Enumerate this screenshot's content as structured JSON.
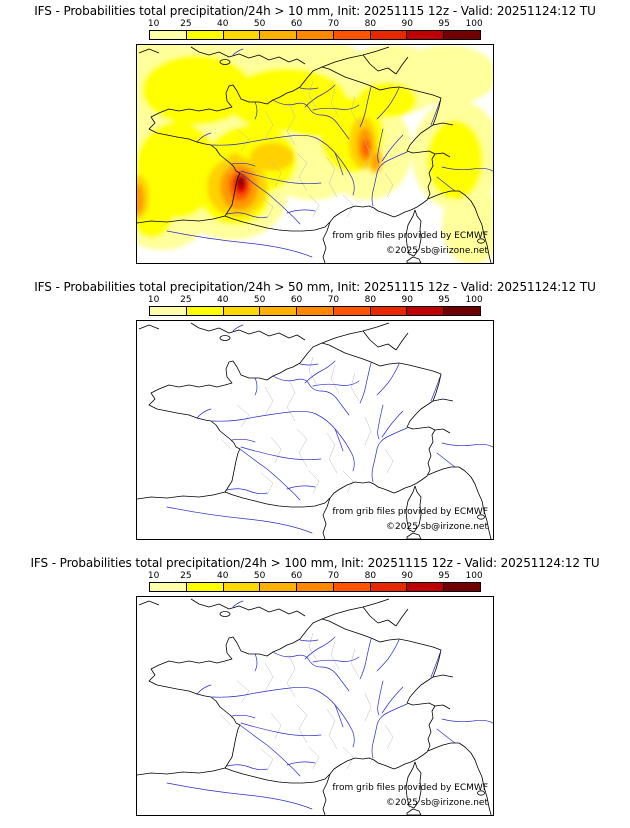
{
  "panels": [
    {
      "title": "IFS - Probabilities total precipitation/24h > 10 mm, Init: 20251115 12z - Valid: 20251124:12 TU",
      "threshold_mm": 10,
      "shading": true,
      "credit_line1": "from grib files provided by ECMWF",
      "credit_line2": "©2025 sb@irizone.net",
      "shaded_regions": [
        {
          "area": "English Channel, Brittany and northwest France",
          "probability_pct": "10-40"
        },
        {
          "area": "Atlantic / Bay of Biscay offshore",
          "probability_pct": "10-40"
        },
        {
          "area": "Aquitaine coast (Gironde / Landes)",
          "probability_pct": "40-100, dark core ~95-100"
        },
        {
          "area": "East-central France (Burgundy / Saône-Rhône streak)",
          "probability_pct": "40-80"
        },
        {
          "area": "Northern Italy, Ligurian and Tuscan coast",
          "probability_pct": "10-40"
        },
        {
          "area": "Northeast Spain / western Pyrenees edge",
          "probability_pct": "10-60"
        }
      ]
    },
    {
      "title": "IFS - Probabilities total precipitation/24h > 50 mm, Init: 20251115 12z - Valid: 20251124:12 TU",
      "threshold_mm": 50,
      "shading": false,
      "credit_line1": "from grib files provided by ECMWF",
      "credit_line2": "©2025 sb@irizone.net",
      "shaded_regions": []
    },
    {
      "title": "IFS - Probabilities total precipitation/24h > 100 mm, Init: 20251115 12z - Valid: 20251124:12 TU",
      "threshold_mm": 100,
      "shading": false,
      "credit_line1": "from grib files provided by ECMWF",
      "credit_line2": "©2025 sb@irizone.net",
      "shaded_regions": []
    }
  ],
  "colorbar": {
    "tick_labels": [
      "10",
      "25",
      "40",
      "50",
      "60",
      "70",
      "80",
      "90",
      "95",
      "100"
    ],
    "segments": [
      {
        "from": 10,
        "to": 25,
        "color": "#FFFFAA"
      },
      {
        "from": 25,
        "to": 40,
        "color": "#FFFF00"
      },
      {
        "from": 40,
        "to": 50,
        "color": "#FFD800"
      },
      {
        "from": 50,
        "to": 60,
        "color": "#FFB000"
      },
      {
        "from": 60,
        "to": 70,
        "color": "#FF8800"
      },
      {
        "from": 70,
        "to": 80,
        "color": "#FF5500"
      },
      {
        "from": 80,
        "to": 90,
        "color": "#E82800"
      },
      {
        "from": 90,
        "to": 95,
        "color": "#BE0000"
      },
      {
        "from": 95,
        "to": 100,
        "color": "#700000"
      }
    ]
  },
  "map": {
    "coastline_color": "#000000",
    "river_color": "#2B2BCB",
    "admin_border_color": "#BBBBBB",
    "sea_land_color": "#FFFFFF"
  }
}
